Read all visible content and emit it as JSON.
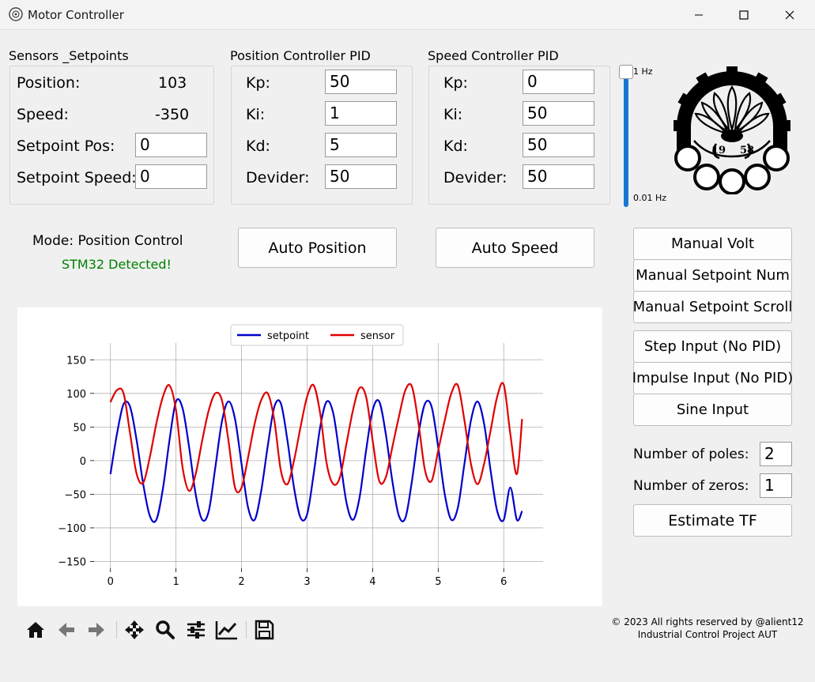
{
  "window": {
    "title": "Motor Controller"
  },
  "sensors": {
    "group_title": "Sensors _Setpoints",
    "position_label": "Position:",
    "position_value": "103",
    "speed_label": "Speed:",
    "speed_value": "-350",
    "setpoint_pos_label": "Setpoint Pos:",
    "setpoint_pos_value": "0",
    "setpoint_speed_label": "Setpoint Speed:",
    "setpoint_speed_value": "0"
  },
  "position_pid": {
    "group_title": "Position Controller PID",
    "kp_label": "Kp:",
    "kp_value": "50",
    "ki_label": "Ki:",
    "ki_value": "1",
    "kd_label": "Kd:",
    "kd_value": "5",
    "divider_label": "Devider:",
    "divider_value": "50"
  },
  "speed_pid": {
    "group_title": "Speed Controller PID",
    "kp_label": "Kp:",
    "kp_value": "0",
    "ki_label": "Ki:",
    "ki_value": "50",
    "kd_label": "Kd:",
    "kd_value": "50",
    "divider_label": "Devider:",
    "divider_value": "50"
  },
  "frequency_slider": {
    "max_label": "1 Hz",
    "min_label": "0.01 Hz",
    "value_fraction": 1.0
  },
  "status": {
    "mode_text": "Mode: Position Control",
    "device_text": "STM32 Detected!",
    "device_color": "#008000"
  },
  "buttons": {
    "auto_position": "Auto Position",
    "auto_speed": "Auto Speed",
    "manual_volt": "Manual Volt",
    "manual_setpoint_num": "Manual Setpoint Num",
    "manual_setpoint_scroll": "Manual Setpoint Scroll",
    "step_input": "Step Input (No PID)",
    "impulse_input": "Impulse Input (No PID)",
    "sine_input": "Sine Input",
    "estimate_tf": "Estimate TF"
  },
  "tf_estimation": {
    "poles_label": "Number of poles:",
    "poles_value": "2",
    "zeros_label": "Number of zeros:",
    "zeros_value": "1"
  },
  "toolbar": {
    "icons": [
      "home-icon",
      "back-arrow-icon",
      "forward-arrow-icon",
      "pan-icon",
      "zoom-icon",
      "configure-subplots-icon",
      "edit-axis-icon",
      "save-icon"
    ]
  },
  "footer": {
    "line1": "© 2023 All rights reserved by @alient12",
    "line2": "Industrial Control Project AUT"
  },
  "chart_data": {
    "type": "line",
    "xlim": [
      -0.25,
      6.6
    ],
    "ylim": [
      -160,
      175
    ],
    "x_ticks": [
      0,
      1,
      2,
      3,
      4,
      5,
      6
    ],
    "y_ticks": [
      150,
      100,
      50,
      0,
      -50,
      -100,
      -150
    ],
    "y_tick_labels": [
      "150",
      "100",
      "50",
      "0",
      "−50",
      "−100",
      "−150"
    ],
    "grid": true,
    "legend_position": "top-center",
    "series": [
      {
        "name": "setpoint",
        "color": "#0000cc",
        "x": [
          0,
          0.1,
          0.2,
          0.3,
          0.4,
          0.5,
          0.6,
          0.7,
          0.8,
          0.9,
          1.0,
          1.1,
          1.2,
          1.3,
          1.4,
          1.5,
          1.6,
          1.7,
          1.8,
          1.9,
          2.0,
          2.1,
          2.2,
          2.3,
          2.4,
          2.5,
          2.6,
          2.7,
          2.8,
          2.9,
          3.0,
          3.1,
          3.2,
          3.3,
          3.4,
          3.5,
          3.6,
          3.7,
          3.8,
          3.9,
          4.0,
          4.1,
          4.2,
          4.3,
          4.4,
          4.5,
          4.6,
          4.7,
          4.8,
          4.9,
          5.0,
          5.1,
          5.2,
          5.3,
          5.4,
          5.5,
          5.6,
          5.7,
          5.8,
          5.9,
          6.0,
          6.1,
          6.2,
          6.28
        ],
        "y": [
          -20,
          40,
          84,
          80,
          30,
          -35,
          -82,
          -88,
          -42,
          30,
          88,
          78,
          20,
          -50,
          -88,
          -75,
          -10,
          58,
          88,
          62,
          -5,
          -70,
          -88,
          -45,
          22,
          80,
          85,
          30,
          -40,
          -85,
          -80,
          -20,
          50,
          88,
          70,
          5,
          -62,
          -88,
          -55,
          15,
          75,
          88,
          40,
          -30,
          -82,
          -85,
          -30,
          40,
          85,
          80,
          20,
          -50,
          -88,
          -70,
          -5,
          60,
          88,
          55,
          -15,
          -75,
          -88,
          -40,
          -88,
          -75
        ]
      },
      {
        "name": "sensor",
        "color": "#e00000",
        "x": [
          0,
          0.1,
          0.2,
          0.3,
          0.4,
          0.5,
          0.6,
          0.7,
          0.8,
          0.9,
          1.0,
          1.1,
          1.2,
          1.3,
          1.4,
          1.5,
          1.6,
          1.7,
          1.8,
          1.9,
          2.0,
          2.1,
          2.2,
          2.3,
          2.4,
          2.5,
          2.6,
          2.7,
          2.8,
          2.9,
          3.0,
          3.1,
          3.2,
          3.3,
          3.4,
          3.5,
          3.6,
          3.7,
          3.8,
          3.9,
          4.0,
          4.1,
          4.2,
          4.3,
          4.4,
          4.5,
          4.6,
          4.7,
          4.8,
          4.9,
          5.0,
          5.1,
          5.2,
          5.3,
          5.4,
          5.5,
          5.6,
          5.7,
          5.8,
          5.9,
          6.0,
          6.1,
          6.2,
          6.28
        ],
        "y": [
          87,
          105,
          100,
          40,
          -20,
          -33,
          5,
          55,
          95,
          112,
          75,
          -10,
          -45,
          -20,
          30,
          75,
          100,
          90,
          30,
          -40,
          -40,
          5,
          55,
          90,
          100,
          60,
          -15,
          -35,
          0,
          50,
          95,
          112,
          70,
          -5,
          -35,
          -25,
          25,
          75,
          108,
          95,
          30,
          -30,
          -25,
          20,
          65,
          105,
          110,
          55,
          -15,
          -30,
          15,
          60,
          100,
          112,
          60,
          -5,
          -35,
          -5,
          45,
          95,
          113,
          40,
          -20,
          62
        ]
      }
    ]
  }
}
